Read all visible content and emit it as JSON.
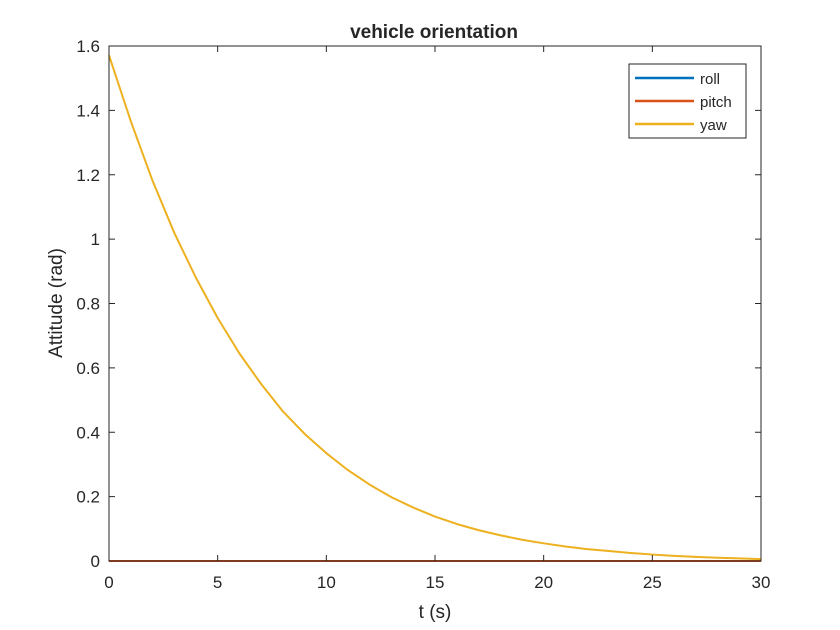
{
  "chart_data": {
    "type": "line",
    "title": "vehicle orientation",
    "xlabel": "t (s)",
    "ylabel": "Attitude (rad)",
    "xlim": [
      0,
      30
    ],
    "ylim": [
      0,
      1.6
    ],
    "xticks": [
      "0",
      "5",
      "10",
      "15",
      "20",
      "25",
      "30"
    ],
    "yticks": [
      "0",
      "0.2",
      "0.4",
      "0.6",
      "0.8",
      "1",
      "1.2",
      "1.4",
      "1.6"
    ],
    "grid": false,
    "legend_position": "top-right",
    "series": [
      {
        "name": "roll",
        "color": "#0072BD",
        "x": [
          0,
          30
        ],
        "y": [
          0,
          0
        ]
      },
      {
        "name": "pitch",
        "color": "#D95319",
        "x": [
          0,
          30
        ],
        "y": [
          0,
          0
        ]
      },
      {
        "name": "yaw",
        "color": "#EDB120",
        "x": [
          0,
          1,
          2,
          3,
          4,
          5,
          6,
          7,
          8,
          9,
          10,
          11,
          12,
          13,
          14,
          15,
          16,
          17,
          18,
          19,
          20,
          21,
          22,
          23,
          24,
          25,
          26,
          27,
          28,
          29,
          30
        ],
        "y": [
          1.571,
          1.367,
          1.182,
          1.02,
          0.88,
          0.755,
          0.645,
          0.55,
          0.465,
          0.395,
          0.335,
          0.282,
          0.237,
          0.198,
          0.166,
          0.138,
          0.115,
          0.096,
          0.08,
          0.066,
          0.055,
          0.045,
          0.037,
          0.031,
          0.025,
          0.02,
          0.016,
          0.013,
          0.01,
          0.008,
          0.006
        ]
      }
    ]
  }
}
